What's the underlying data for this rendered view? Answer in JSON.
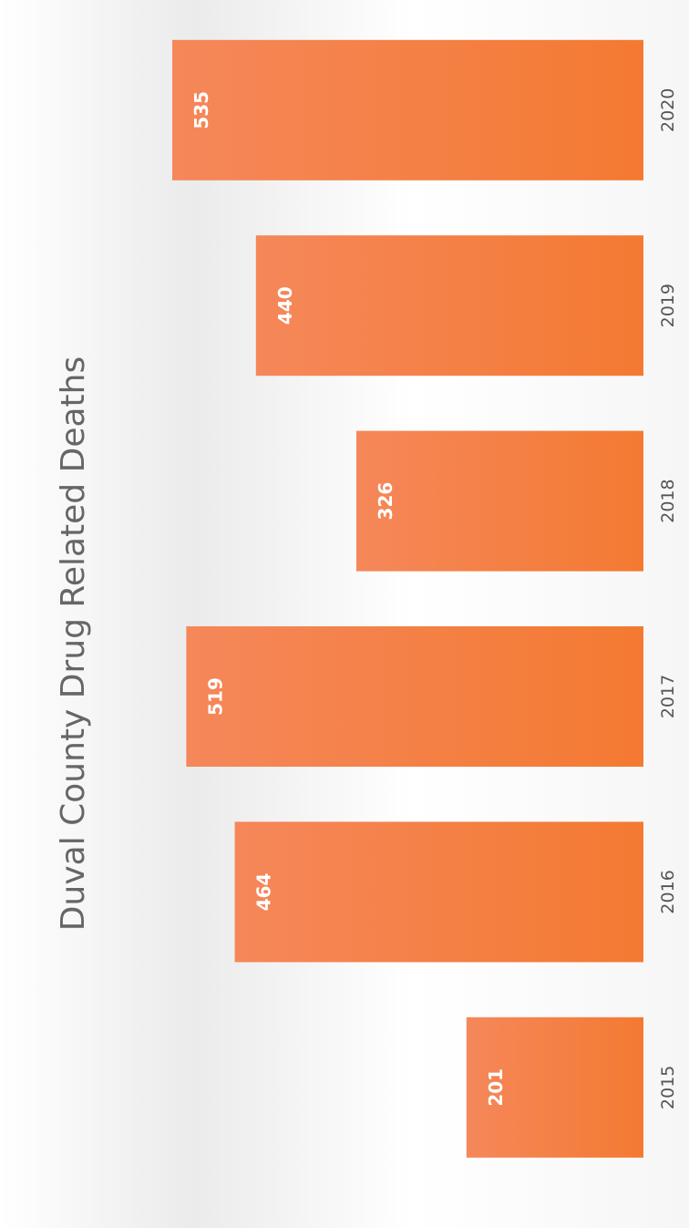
{
  "chart_data": {
    "type": "bar",
    "orientation": "rotated 90° counter-clockwise (landscape chart shown sideways)",
    "title": "Duval County Drug Related Deaths",
    "categories": [
      "2015",
      "2016",
      "2017",
      "2018",
      "2019",
      "2020"
    ],
    "values": [
      201,
      464,
      519,
      326,
      440,
      535
    ],
    "xlabel": "",
    "ylabel": "",
    "ylim": [
      0,
      600
    ],
    "grid": false,
    "legend": "none",
    "data_labels": true,
    "bar_color": "#f47a32",
    "bar_color_light": "#f5875a"
  }
}
